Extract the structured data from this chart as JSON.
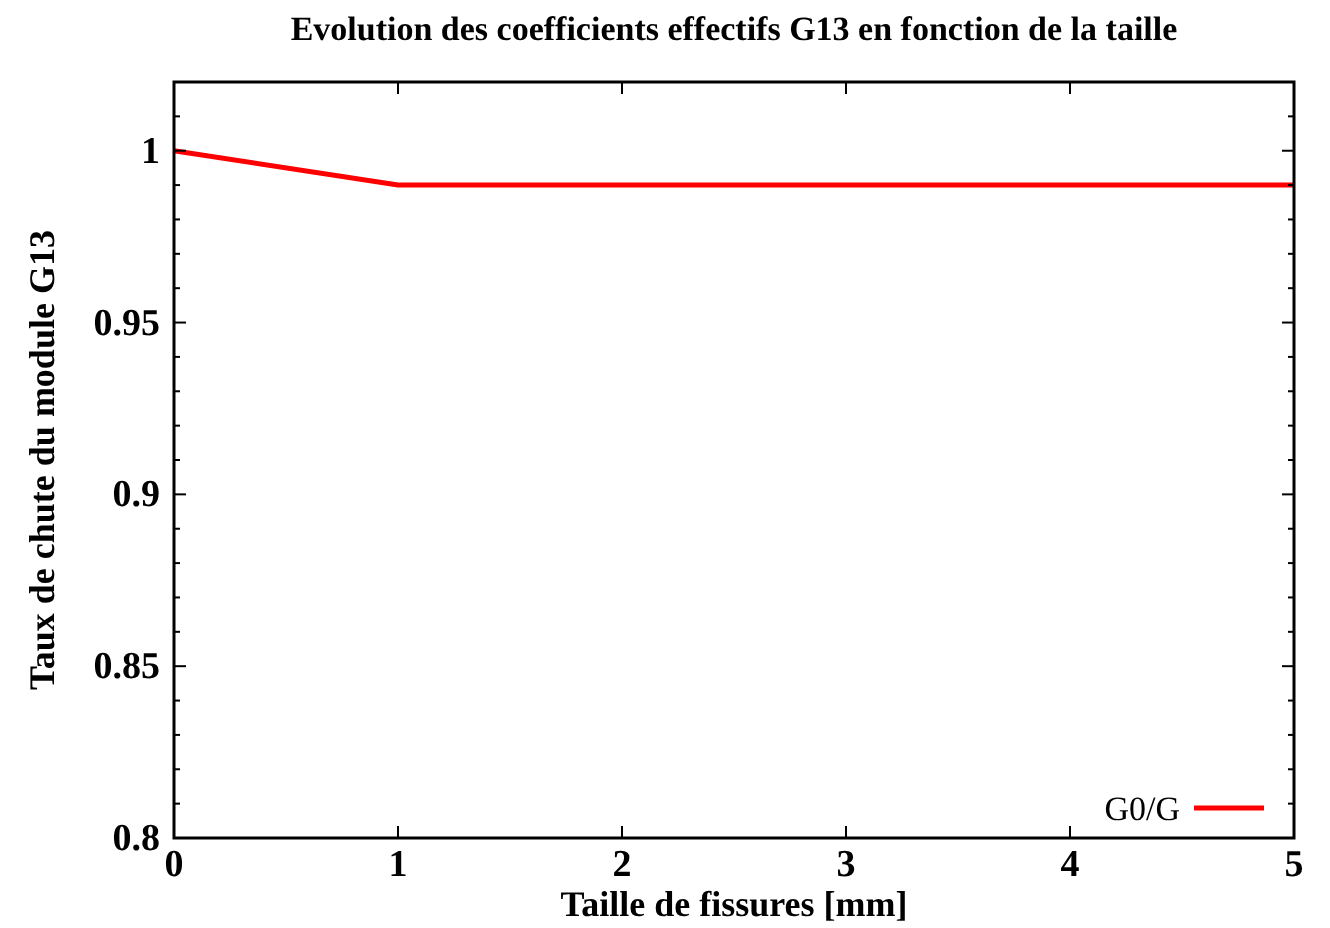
{
  "chart_data": {
    "type": "line",
    "title": "Evolution des coefficients effectifs G13 en fonction de la taille",
    "xlabel": "Taille de fissures [mm]",
    "ylabel": "Taux de chute du module G13",
    "x": [
      0,
      1,
      2,
      3,
      4,
      5
    ],
    "series": [
      {
        "name": "G0/G",
        "color": "#ff0000",
        "values": [
          1,
          0.99,
          0.99,
          0.99,
          0.99,
          0.99
        ]
      }
    ],
    "xlim": [
      0,
      5
    ],
    "xticks": [
      0,
      1,
      2,
      3,
      4,
      5
    ],
    "ylim": [
      0.8,
      1.02
    ],
    "yticks": [
      0.8,
      {
        "value": 0.81,
        "label": null
      },
      {
        "value": 0.82,
        "label": null
      },
      {
        "value": 0.83,
        "label": null
      },
      {
        "value": 0.84,
        "label": null
      },
      0.85,
      {
        "value": 0.86,
        "label": null
      },
      {
        "value": 0.87,
        "label": null
      },
      {
        "value": 0.88,
        "label": null
      },
      {
        "value": 0.89,
        "label": null
      },
      0.9,
      {
        "value": 0.91,
        "label": null
      },
      {
        "value": 0.92,
        "label": null
      },
      {
        "value": 0.93,
        "label": null
      },
      {
        "value": 0.94,
        "label": null
      },
      0.95,
      {
        "value": 0.96,
        "label": null
      },
      {
        "value": 0.97,
        "label": null
      },
      {
        "value": 0.98,
        "label": null
      },
      {
        "value": 0.99,
        "label": null
      },
      1,
      {
        "value": 1.01,
        "label": null
      },
      {
        "value": 1.02,
        "label": null
      }
    ],
    "legend": "bottom right",
    "grid": false,
    "marker": "none",
    "line_style": "solid"
  }
}
